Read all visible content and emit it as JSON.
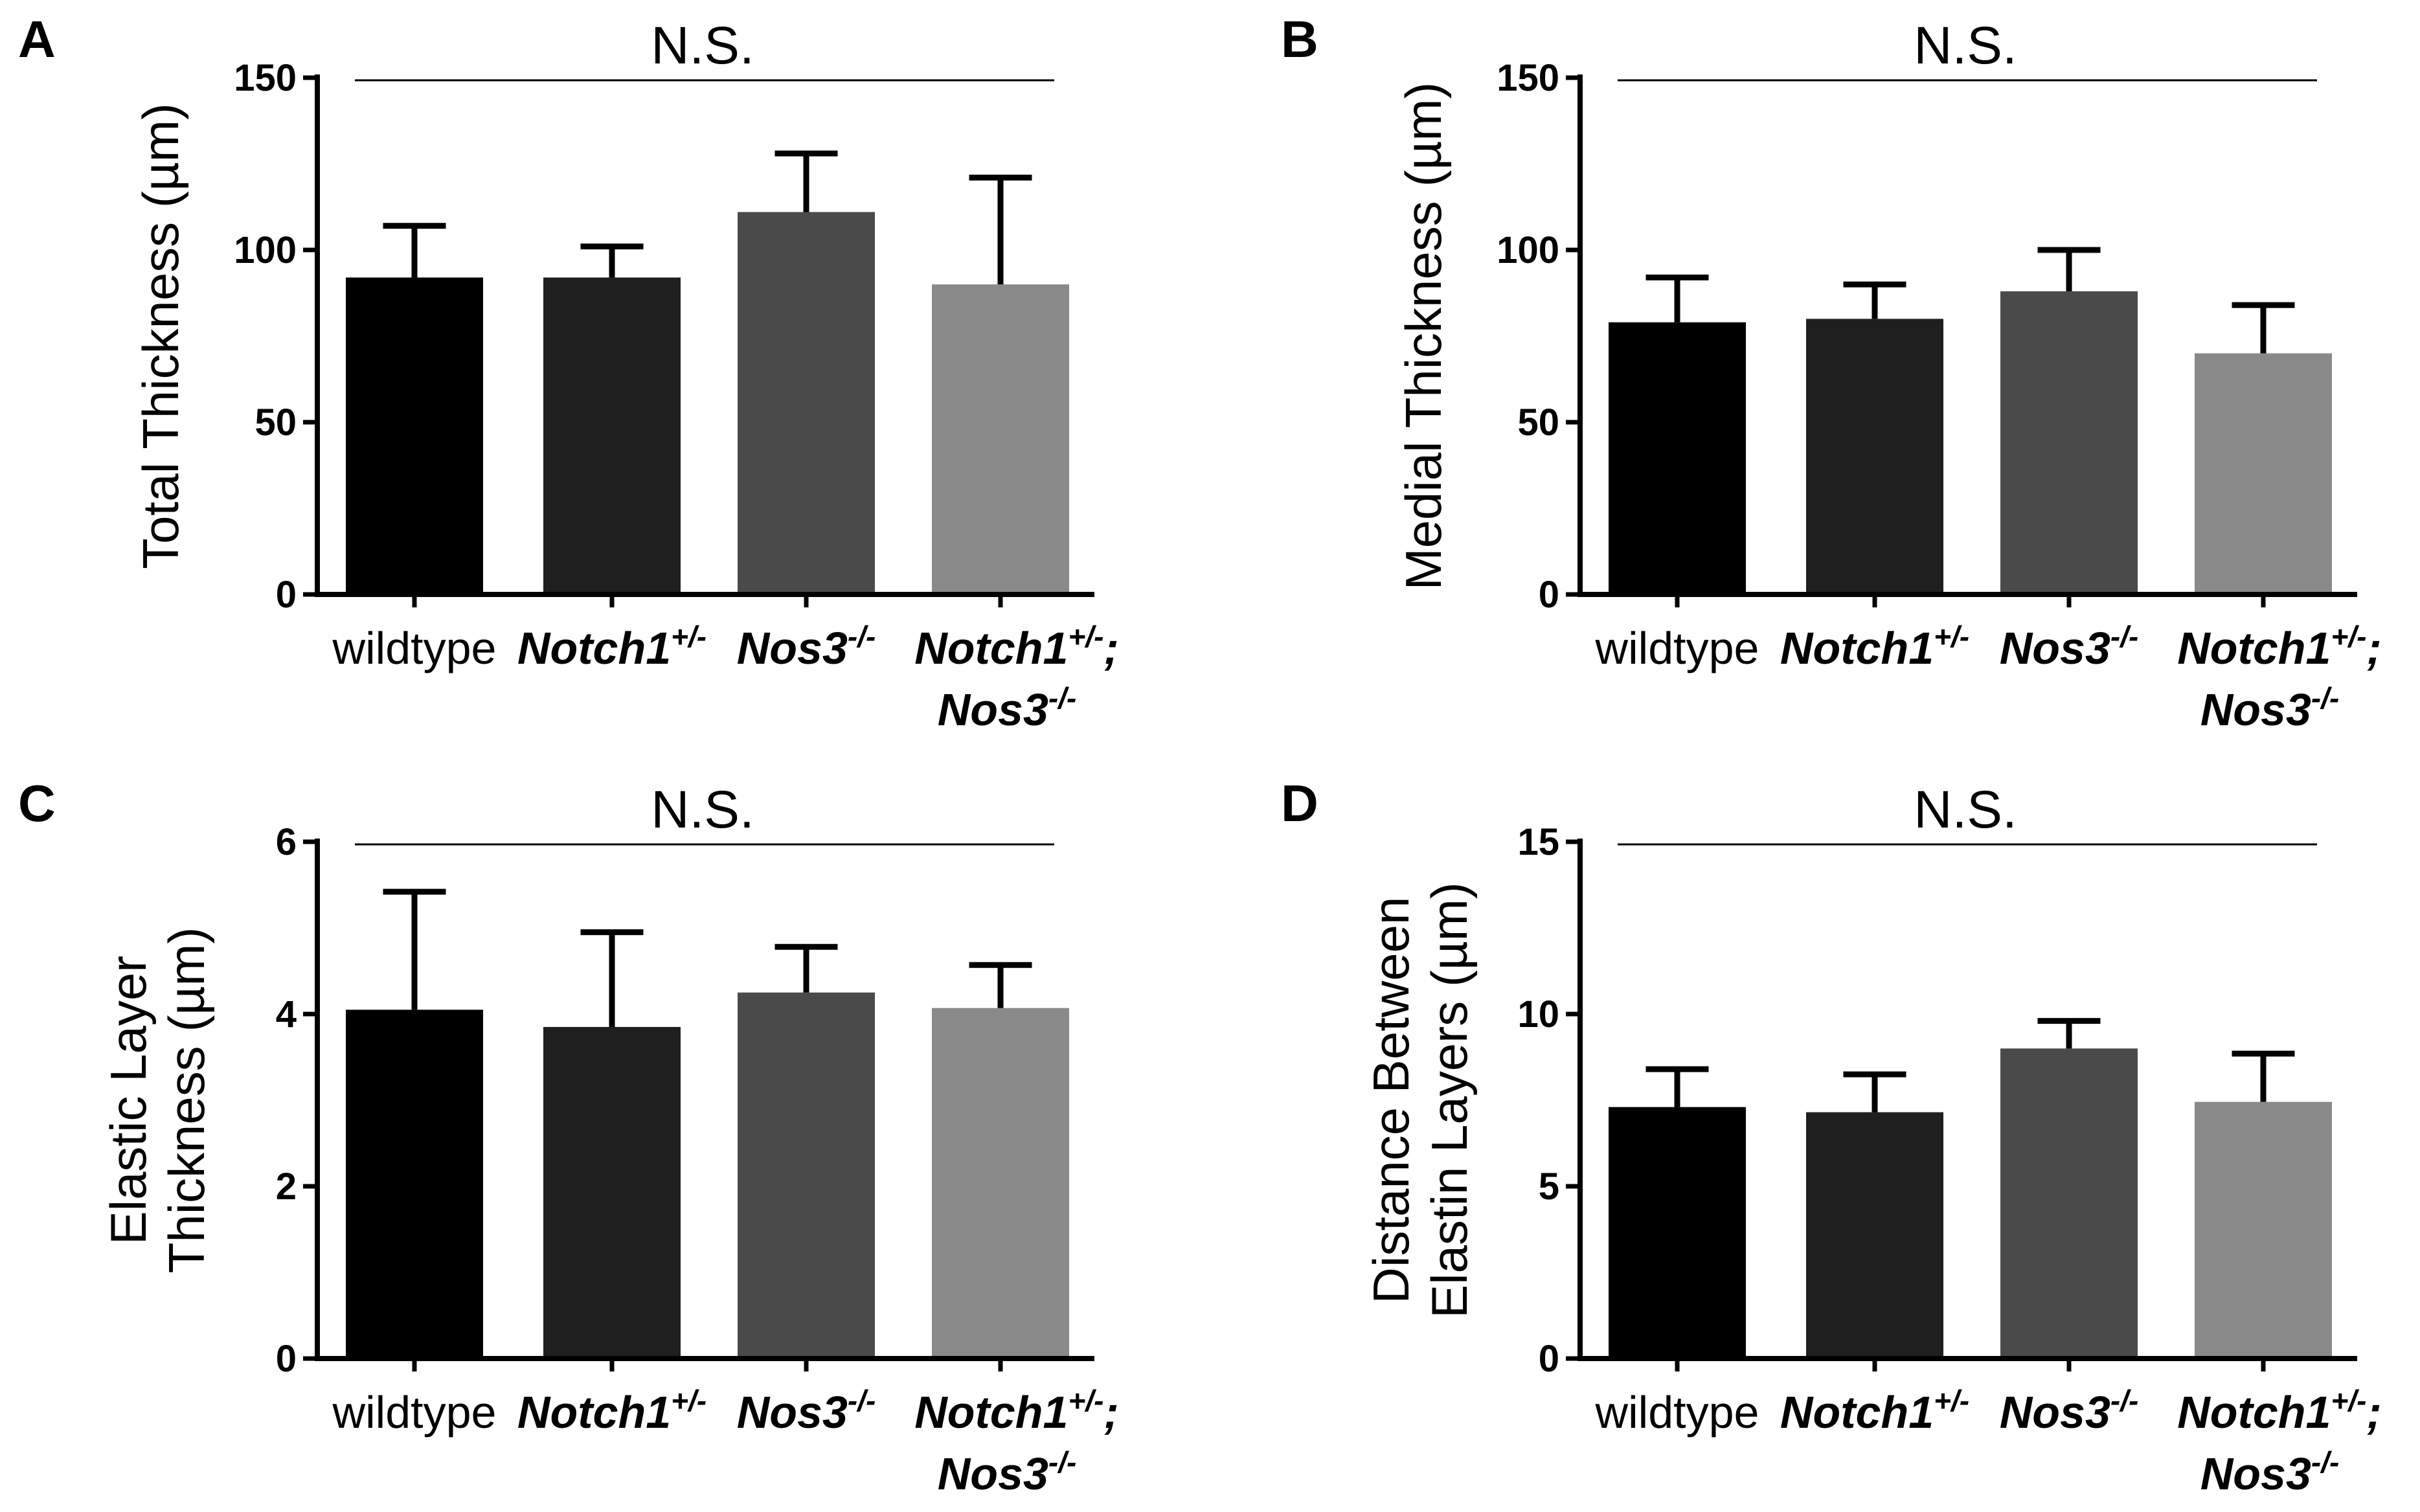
{
  "chart_data": [
    {
      "type": "bar",
      "panel": "A",
      "significance": "N.S.",
      "ylabel": "Total Thickness (µm)",
      "ylim": [
        0,
        150
      ],
      "yticks": [
        "0",
        "50",
        "100",
        "150"
      ],
      "categories": [
        {
          "name": "wildtype",
          "genotypes": [
            "wildtype"
          ]
        },
        {
          "name": "Notch1+/-",
          "genotypes": [
            "Notch1+/-"
          ]
        },
        {
          "name": "Nos3-/-",
          "genotypes": [
            "Nos3-/-"
          ]
        },
        {
          "name": "Notch1+/-; Nos3-/-",
          "genotypes": [
            "Notch1+/-;",
            "Nos3-/-"
          ]
        }
      ],
      "values": [
        92,
        92,
        111,
        90
      ],
      "errors": [
        15,
        9,
        17,
        31
      ],
      "colors": [
        "#000000",
        "#1f1f1f",
        "#4a4a4a",
        "#898989"
      ]
    },
    {
      "type": "bar",
      "panel": "B",
      "significance": "N.S.",
      "ylabel": "Medial Thickness (µm)",
      "ylim": [
        0,
        150
      ],
      "yticks": [
        "0",
        "50",
        "100",
        "150"
      ],
      "categories": [
        {
          "name": "wildtype",
          "genotypes": [
            "wildtype"
          ]
        },
        {
          "name": "Notch1+/-",
          "genotypes": [
            "Notch1+/-"
          ]
        },
        {
          "name": "Nos3-/-",
          "genotypes": [
            "Nos3-/-"
          ]
        },
        {
          "name": "Notch1+/-; Nos3-/-",
          "genotypes": [
            "Notch1+/-;",
            "Nos3-/-"
          ]
        }
      ],
      "values": [
        79,
        80,
        88,
        70
      ],
      "errors": [
        13,
        10,
        12,
        14
      ],
      "colors": [
        "#000000",
        "#1f1f1f",
        "#4a4a4a",
        "#898989"
      ]
    },
    {
      "type": "bar",
      "panel": "C",
      "significance": "N.S.",
      "ylabel": [
        "Elastic Layer",
        "Thickness (µm)"
      ],
      "ylim": [
        0,
        6
      ],
      "yticks": [
        "0",
        "2",
        "4",
        "6"
      ],
      "categories": [
        {
          "name": "wildtype",
          "genotypes": [
            "wildtype"
          ]
        },
        {
          "name": "Notch1+/-",
          "genotypes": [
            "Notch1+/-"
          ]
        },
        {
          "name": "Nos3-/-",
          "genotypes": [
            "Nos3-/-"
          ]
        },
        {
          "name": "Notch1+/-; Nos3-/-",
          "genotypes": [
            "Notch1+/-;",
            "Nos3-/-"
          ]
        }
      ],
      "values": [
        4.05,
        3.85,
        4.25,
        4.07
      ],
      "errors": [
        1.37,
        1.1,
        0.53,
        0.5
      ],
      "colors": [
        "#000000",
        "#1f1f1f",
        "#4a4a4a",
        "#898989"
      ]
    },
    {
      "type": "bar",
      "panel": "D",
      "significance": "N.S.",
      "ylabel": [
        "Distance Between",
        "Elastin Layers (µm)"
      ],
      "ylim": [
        0,
        15
      ],
      "yticks": [
        "0",
        "5",
        "10",
        "15"
      ],
      "categories": [
        {
          "name": "wildtype",
          "genotypes": [
            "wildtype"
          ]
        },
        {
          "name": "Notch1+/-",
          "genotypes": [
            "Notch1+/-"
          ]
        },
        {
          "name": "Nos3-/-",
          "genotypes": [
            "Nos3-/-"
          ]
        },
        {
          "name": "Notch1+/-; Nos3-/-",
          "genotypes": [
            "Notch1+/-;",
            "Nos3-/-"
          ]
        }
      ],
      "values": [
        7.3,
        7.15,
        9.0,
        7.45
      ],
      "errors": [
        1.1,
        1.1,
        0.8,
        1.4
      ],
      "colors": [
        "#000000",
        "#1f1f1f",
        "#4a4a4a",
        "#898989"
      ]
    }
  ]
}
